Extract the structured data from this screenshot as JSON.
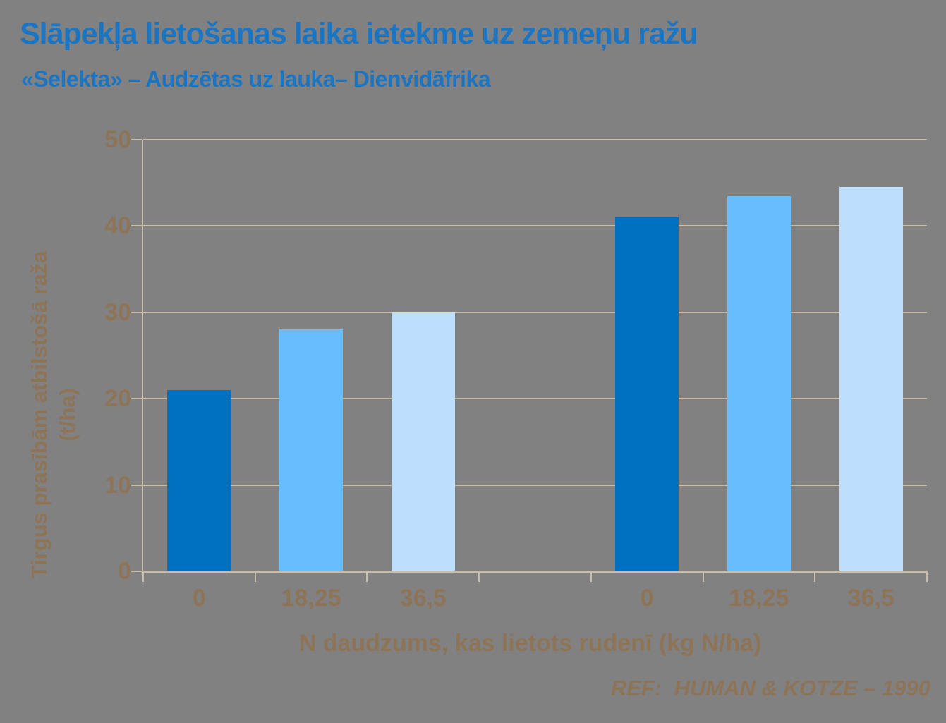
{
  "slide": {
    "title": "Slāpekļa lietošanas laika ietekme uz zemeņu ražu",
    "subtitle": "«Selekta» – Audzētas uz lauka– Dienvidāfrika",
    "reference": "REF:  HUMAN & KOTZE – 1990"
  },
  "colors": {
    "background": "#818181",
    "title_blue": "#1B75C2",
    "text_brown": "#8D7457",
    "axis_line": "#C8BCAB",
    "bar_dark_blue": "#0070C0",
    "bar_medium_blue": "#68BDFF",
    "bar_light_blue": "#BDDFFD"
  },
  "chart_data": {
    "type": "bar",
    "title": "Slāpekļa lietošanas laika ietekme uz zemeņu ražu",
    "subtitle": "«Selekta» – Audzētas uz lauka– Dienvidāfrika",
    "xlabel": "N daudzums, kas lietots rudenī (kg N/ha)",
    "ylabel_line1": "Tirgus prasībām atbilstošā raža",
    "ylabel_line2": "(t/ha)",
    "ylabel": "Tirgus prasībām atbilstošā raža (t/ha)",
    "ylim": [
      0,
      50
    ],
    "yticks": [
      0,
      10,
      20,
      30,
      40,
      50
    ],
    "grid": true,
    "legend": false,
    "categories": [
      "0",
      "18,25",
      "36,5",
      "",
      "0",
      "18,25",
      "36,5"
    ],
    "values": [
      21,
      28,
      30,
      null,
      41,
      43.5,
      44.5
    ],
    "bar_color_keys": [
      "bar_dark_blue",
      "bar_medium_blue",
      "bar_light_blue",
      null,
      "bar_dark_blue",
      "bar_medium_blue",
      "bar_light_blue"
    ],
    "groups": [
      {
        "name": "group-1",
        "x": [
          "0",
          "18,25",
          "36,5"
        ],
        "values": [
          21,
          28,
          30
        ]
      },
      {
        "name": "group-2",
        "x": [
          "0",
          "18,25",
          "36,5"
        ],
        "values": [
          41,
          43.5,
          44.5
        ]
      }
    ],
    "annotation": "REF:  HUMAN & KOTZE – 1990"
  }
}
